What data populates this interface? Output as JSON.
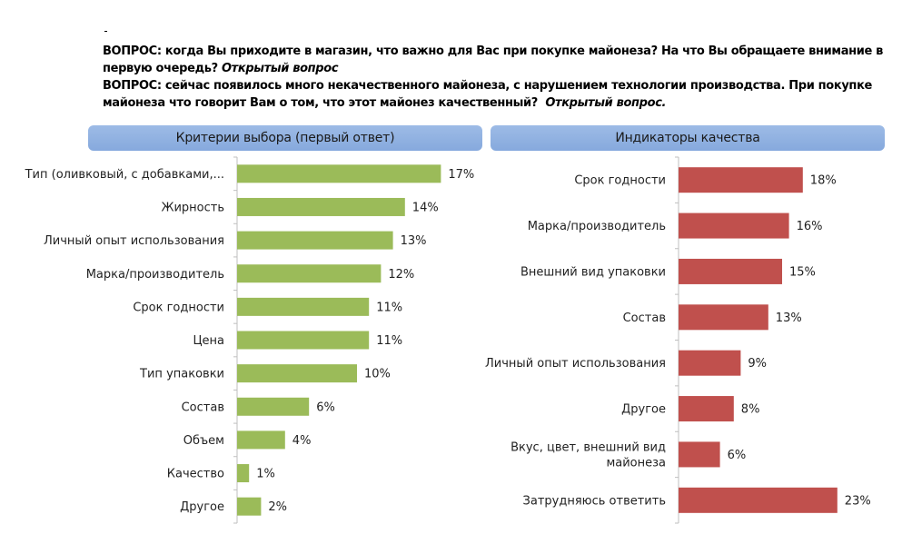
{
  "questions": {
    "q1_text": "ВОПРОС: когда Вы приходите в магазин, что важно для Вас при покупке майонеза? На что Вы обращаете внимание в первую очередь?",
    "q1_tag": "Открытый вопрос",
    "q2_text": "ВОПРОС: сейчас появилось много некачественного майонеза, с нарушением технологии производства. При покупке майонеза что говорит Вам о том, что этот майонез качественный?",
    "q2_tag": "Открытый вопрос."
  },
  "chart_data": [
    {
      "type": "bar",
      "orientation": "horizontal",
      "title": "Критерии выбора (первый ответ)",
      "categories": [
        "Тип (оливковый, с добавками,...",
        "Жирность",
        "Личный опыт использования",
        "Марка/производитель",
        "Срок годности",
        "Цена",
        "Тип упаковки",
        "Состав",
        "Объем",
        "Качество",
        "Другое"
      ],
      "values": [
        17,
        14,
        13,
        12,
        11,
        11,
        10,
        6,
        4,
        1,
        2
      ],
      "labels": [
        "17%",
        "14%",
        "13%",
        "12%",
        "11%",
        "11%",
        "10%",
        "6%",
        "4%",
        "1%",
        "2%"
      ],
      "unit": "%",
      "color": "#9bbb59",
      "xlim": [
        0,
        18
      ],
      "grid": false
    },
    {
      "type": "bar",
      "orientation": "horizontal",
      "title": "Индикаторы качества",
      "categories": [
        "Срок годности",
        "Марка/производитель",
        "Внешний вид упаковки",
        "Состав",
        "Личный опыт использования",
        "Другое",
        "Вкус, цвет, внешний вид майонеза",
        "Затрудняюсь ответить"
      ],
      "values": [
        18,
        16,
        15,
        13,
        9,
        8,
        6,
        23
      ],
      "labels": [
        "18%",
        "16%",
        "15%",
        "13%",
        "9%",
        "8%",
        "6%",
        "23%"
      ],
      "unit": "%",
      "color": "#c0504d",
      "xlim": [
        0,
        24
      ],
      "grid": false
    }
  ]
}
